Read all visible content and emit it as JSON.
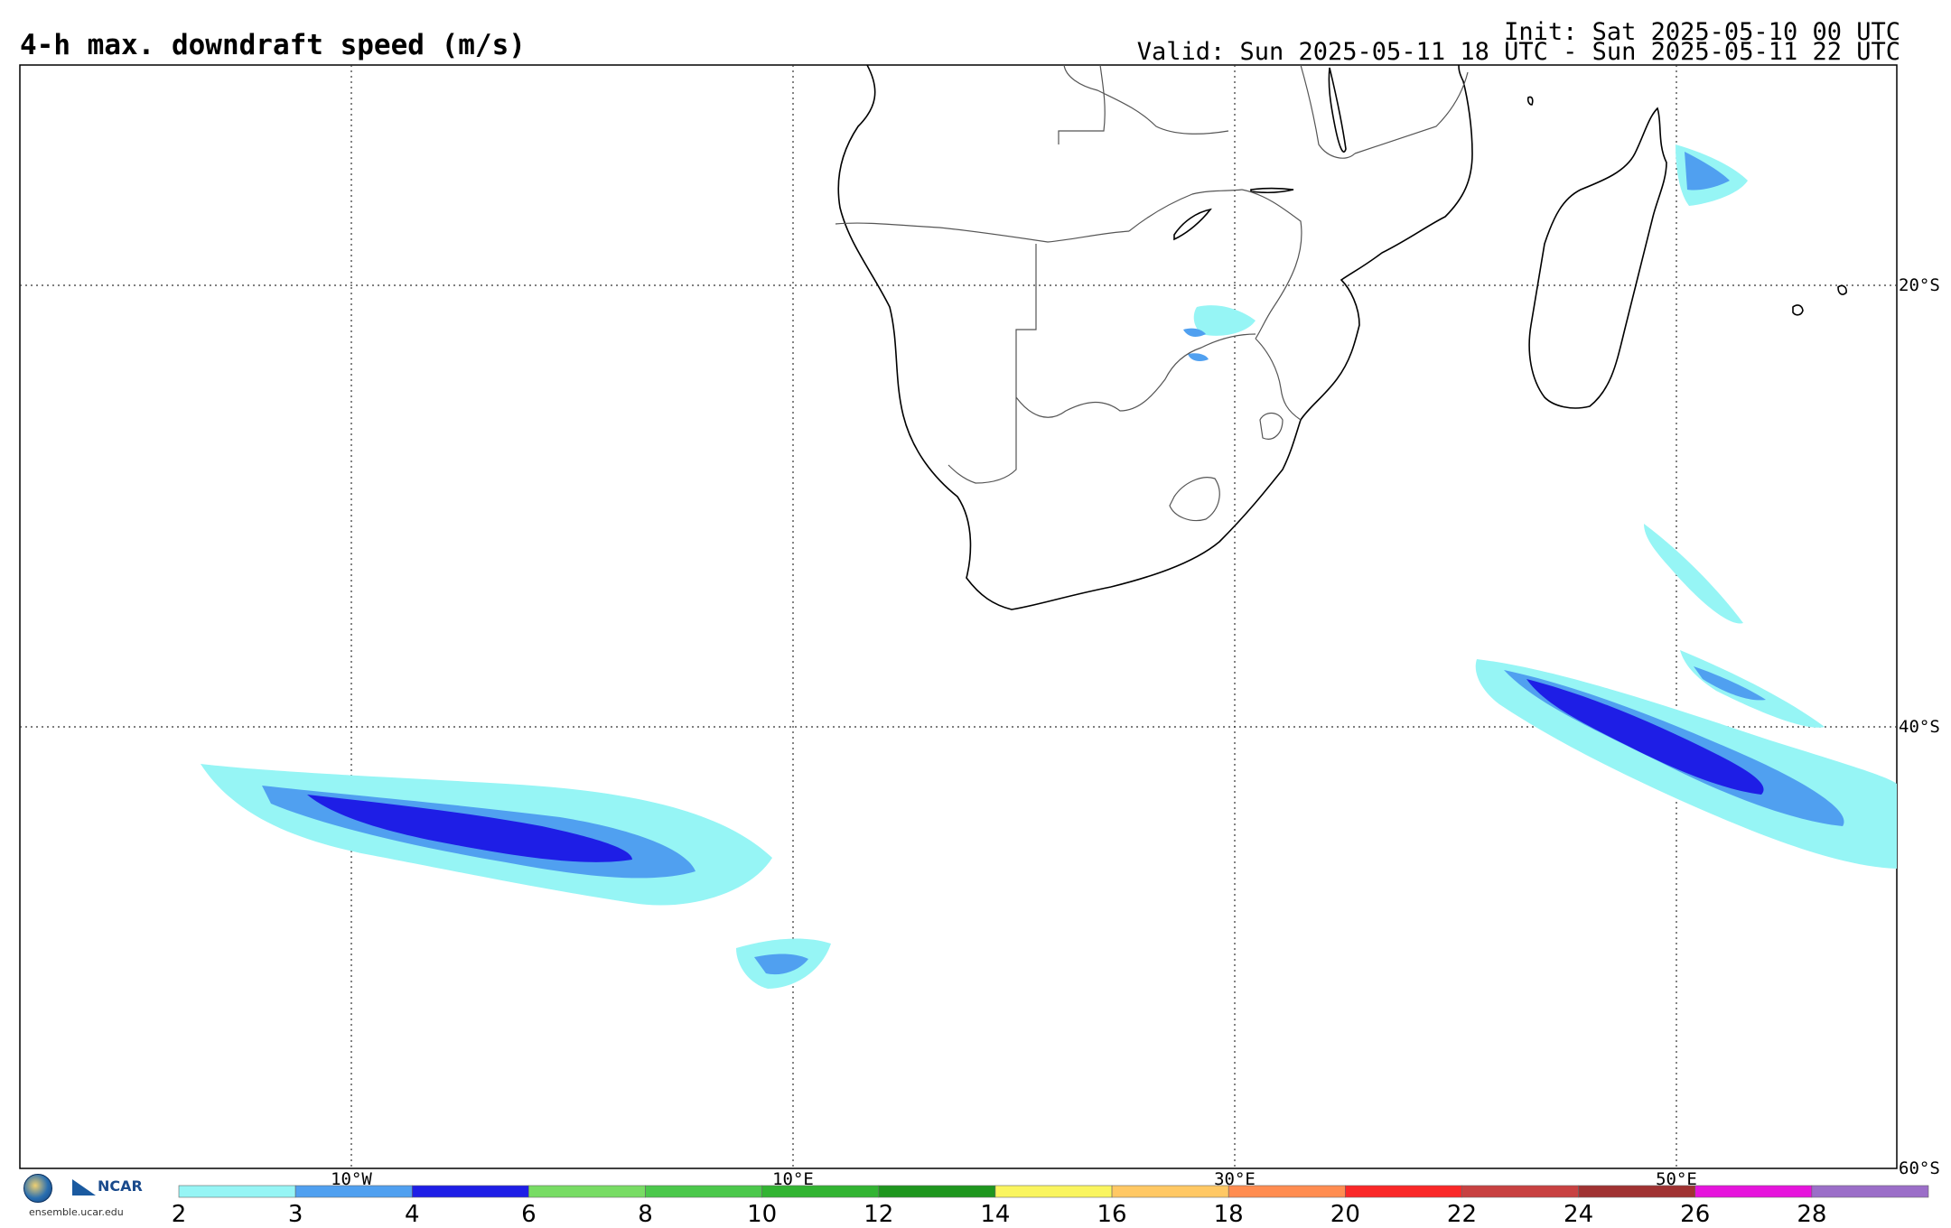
{
  "header": {
    "title": "4-h max. downdraft speed (m/s)",
    "init": "Init: Sat 2025-05-10 00 UTC",
    "valid": "Valid: Sun 2025-05-11 18 UTC - Sun 2025-05-11 22 UTC"
  },
  "map": {
    "lon_labels": [
      "10°W",
      "10°E",
      "30°E",
      "50°E"
    ],
    "lat_labels": [
      "20°S",
      "40°S",
      "60°S"
    ]
  },
  "colorbar": {
    "ticks": [
      "2",
      "3",
      "4",
      "6",
      "8",
      "10",
      "12",
      "14",
      "16",
      "18",
      "20",
      "22",
      "24",
      "26",
      "28"
    ],
    "colors": [
      "#96f5f5",
      "#50a0f0",
      "#1e1ee6",
      "#78dc64",
      "#4bc84b",
      "#32b432",
      "#1e961e",
      "#faf55f",
      "#ffc864",
      "#ff8c50",
      "#fa2828",
      "#c84141",
      "#a03232",
      "#e614dc",
      "#9b6ec8"
    ]
  },
  "footer": {
    "ncar": "NCAR",
    "site": "ensemble.ucar.edu"
  }
}
